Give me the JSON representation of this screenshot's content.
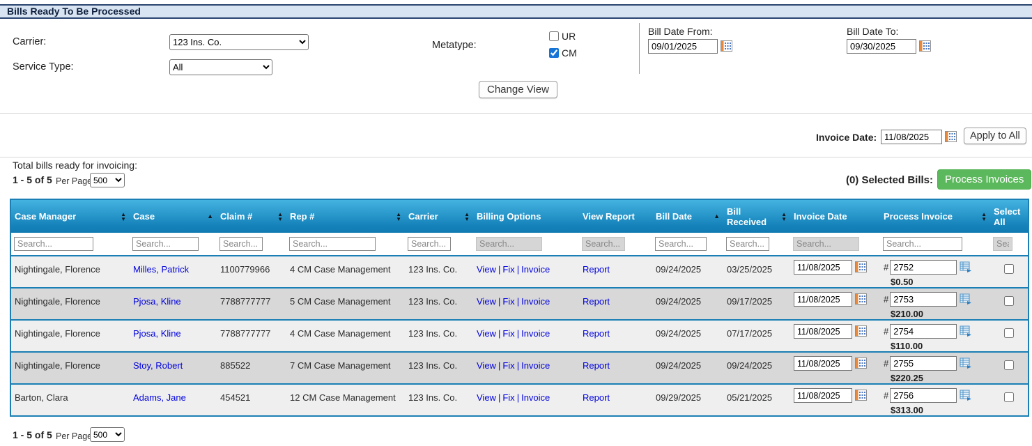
{
  "page": {
    "title": "Bills Ready To Be Processed"
  },
  "filters": {
    "carrier_label": "Carrier:",
    "carrier_value": "123 Ins. Co.",
    "service_type_label": "Service Type:",
    "service_type_value": "All",
    "metatype_label": "Metatype:",
    "metatype_options": [
      {
        "label": "UR",
        "checked": false
      },
      {
        "label": "CM",
        "checked": true
      }
    ],
    "bill_date_from_label": "Bill Date From:",
    "bill_date_from_value": "09/01/2025",
    "bill_date_to_label": "Bill Date To:",
    "bill_date_to_value": "09/30/2025",
    "change_view_label": "Change View"
  },
  "invoice_bar": {
    "invoice_date_label": "Invoice Date:",
    "invoice_date_value": "11/08/2025",
    "apply_to_all_label": "Apply to All",
    "selected_bills_label": "(0) Selected Bills:",
    "process_invoices_label": "Process Invoices"
  },
  "summary": {
    "total_label": "Total bills ready for invoicing:",
    "range_label": "1 - 5 of 5",
    "per_page_label": "Per Page",
    "per_page_value": "500"
  },
  "table": {
    "search_placeholder": "Search...",
    "link_separator": "|",
    "invoice_prefix": "#",
    "billing_options_links": [
      "View",
      "Fix",
      "Invoice"
    ],
    "view_report_link": "Report",
    "columns": [
      {
        "label": "Case Manager",
        "sort": "both",
        "searchable": true
      },
      {
        "label": "Case",
        "sort": "asc",
        "searchable": true
      },
      {
        "label": "Claim #",
        "sort": "both",
        "searchable": true
      },
      {
        "label": "Rep #",
        "sort": "both",
        "searchable": true
      },
      {
        "label": "Carrier",
        "sort": "both",
        "searchable": true
      },
      {
        "label": "Billing Options",
        "sort": "none",
        "searchable": false
      },
      {
        "label": "View Report",
        "sort": "none",
        "searchable": false
      },
      {
        "label": "Bill Date",
        "sort": "asc",
        "searchable": true
      },
      {
        "label": "Bill Received",
        "sort": "both",
        "searchable": true
      },
      {
        "label": "Invoice Date",
        "sort": "none",
        "searchable": false
      },
      {
        "label": "Process Invoice",
        "sort": "both",
        "searchable": true
      },
      {
        "label": "Select All",
        "sort": "none",
        "searchable": false
      }
    ],
    "rows": [
      {
        "case_manager": "Nightingale, Florence",
        "case_name": "Milles, Patrick",
        "claim_number": "1100779966",
        "rep_number": "4 CM Case Management",
        "carrier": "123 Ins. Co.",
        "bill_date": "09/24/2025",
        "bill_received": "03/25/2025",
        "invoice_date": "11/08/2025",
        "invoice_number": "2752",
        "amount": "$0.50",
        "selected": false
      },
      {
        "case_manager": "Nightingale, Florence",
        "case_name": "Pjosa, Kline",
        "claim_number": "7788777777",
        "rep_number": "5 CM Case Management",
        "carrier": "123 Ins. Co.",
        "bill_date": "09/24/2025",
        "bill_received": "09/17/2025",
        "invoice_date": "11/08/2025",
        "invoice_number": "2753",
        "amount": "$210.00",
        "selected": false
      },
      {
        "case_manager": "Nightingale, Florence",
        "case_name": "Pjosa, Kline",
        "claim_number": "7788777777",
        "rep_number": "4 CM Case Management",
        "carrier": "123 Ins. Co.",
        "bill_date": "09/24/2025",
        "bill_received": "07/17/2025",
        "invoice_date": "11/08/2025",
        "invoice_number": "2754",
        "amount": "$110.00",
        "selected": false
      },
      {
        "case_manager": "Nightingale, Florence",
        "case_name": "Stoy, Robert",
        "claim_number": "885522",
        "rep_number": "7 CM Case Management",
        "carrier": "123 Ins. Co.",
        "bill_date": "09/24/2025",
        "bill_received": "09/24/2025",
        "invoice_date": "11/08/2025",
        "invoice_number": "2755",
        "amount": "$220.25",
        "selected": false
      },
      {
        "case_manager": "Barton, Clara",
        "case_name": "Adams, Jane",
        "claim_number": "454521",
        "rep_number": "12 CM Case Management",
        "carrier": "123 Ins. Co.",
        "bill_date": "09/29/2025",
        "bill_received": "05/21/2025",
        "invoice_date": "11/08/2025",
        "invoice_number": "2756",
        "amount": "$313.00",
        "selected": false
      }
    ]
  },
  "footer": {
    "range_label": "1 - 5 of 5",
    "per_page_label": "Per Page",
    "per_page_value": "500"
  },
  "colors": {
    "table_header_top": "#44b3e1",
    "table_header_bottom": "#0f7ab1",
    "table_border": "#1a7fb5",
    "row_light": "#efefef",
    "row_dark": "#d8d8d8",
    "link": "#0000dd",
    "process_button": "#5cb85c",
    "title_bar_bg": "#d9e4f3",
    "title_bar_border": "#2a4570"
  }
}
